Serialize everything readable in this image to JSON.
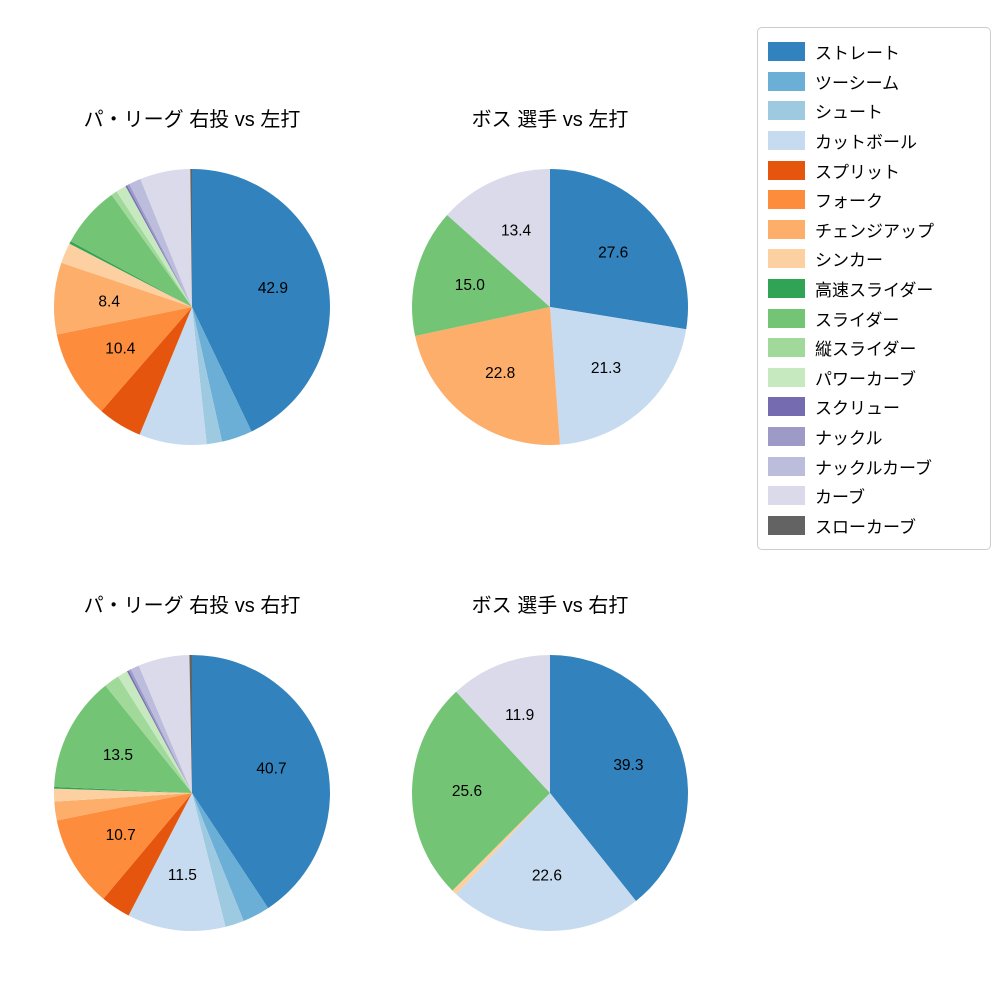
{
  "figure": {
    "background": "#ffffff"
  },
  "legend": {
    "position": "upper-right",
    "items": [
      {
        "label": "ストレート",
        "color": "#3182bd"
      },
      {
        "label": "ツーシーム",
        "color": "#6baed6"
      },
      {
        "label": "シュート",
        "color": "#9ecae1"
      },
      {
        "label": "カットボール",
        "color": "#c6dbef"
      },
      {
        "label": "スプリット",
        "color": "#e6550d"
      },
      {
        "label": "フォーク",
        "color": "#fd8d3c"
      },
      {
        "label": "チェンジアップ",
        "color": "#fdae6b"
      },
      {
        "label": "シンカー",
        "color": "#fdd0a2"
      },
      {
        "label": "高速スライダー",
        "color": "#31a354"
      },
      {
        "label": "スライダー",
        "color": "#74c476"
      },
      {
        "label": "縦スライダー",
        "color": "#a1d99b"
      },
      {
        "label": "パワーカーブ",
        "color": "#c7e9c0"
      },
      {
        "label": "スクリュー",
        "color": "#756bb1"
      },
      {
        "label": "ナックル",
        "color": "#9e9ac8"
      },
      {
        "label": "ナックルカーブ",
        "color": "#bcbddc"
      },
      {
        "label": "カーブ",
        "color": "#dadaeb"
      },
      {
        "label": "スローカーブ",
        "color": "#636363"
      }
    ]
  },
  "chart_data": [
    {
      "type": "pie",
      "title": "パ・リーグ 右投 vs 左打",
      "start_angle": "top",
      "direction": "clockwise",
      "slices": [
        {
          "name": "ストレート",
          "value": 42.9,
          "label": "42.9"
        },
        {
          "name": "ツーシーム",
          "value": 3.6,
          "label": null
        },
        {
          "name": "シュート",
          "value": 1.8,
          "label": null
        },
        {
          "name": "カットボール",
          "value": 7.9,
          "label": null
        },
        {
          "name": "スプリット",
          "value": 5.2,
          "label": null
        },
        {
          "name": "フォーク",
          "value": 10.4,
          "label": "10.4"
        },
        {
          "name": "チェンジアップ",
          "value": 8.4,
          "label": "8.4"
        },
        {
          "name": "シンカー",
          "value": 2.4,
          "label": null
        },
        {
          "name": "高速スライダー",
          "value": 0.3,
          "label": null
        },
        {
          "name": "スライダー",
          "value": 7.2,
          "label": null
        },
        {
          "name": "縦スライダー",
          "value": 0.7,
          "label": null
        },
        {
          "name": "パワーカーブ",
          "value": 1.2,
          "label": null
        },
        {
          "name": "スクリュー",
          "value": 0.2,
          "label": null
        },
        {
          "name": "ナックル",
          "value": 0.3,
          "label": null
        },
        {
          "name": "ナックルカーブ",
          "value": 1.4,
          "label": null
        },
        {
          "name": "カーブ",
          "value": 5.9,
          "label": null
        },
        {
          "name": "スローカーブ",
          "value": 0.2,
          "label": null
        }
      ]
    },
    {
      "type": "pie",
      "title": "ボス 選手 vs 左打",
      "start_angle": "top",
      "direction": "clockwise",
      "slices": [
        {
          "name": "ストレート",
          "value": 27.6,
          "label": "27.6"
        },
        {
          "name": "カットボール",
          "value": 21.3,
          "label": "21.3"
        },
        {
          "name": "チェンジアップ",
          "value": 22.8,
          "label": "22.8"
        },
        {
          "name": "スライダー",
          "value": 15.0,
          "label": "15.0"
        },
        {
          "name": "カーブ",
          "value": 13.4,
          "label": "13.4"
        }
      ]
    },
    {
      "type": "pie",
      "title": "パ・リーグ 右投 vs 右打",
      "start_angle": "top",
      "direction": "clockwise",
      "slices": [
        {
          "name": "ストレート",
          "value": 40.7,
          "label": "40.7"
        },
        {
          "name": "ツーシーム",
          "value": 3.2,
          "label": null
        },
        {
          "name": "シュート",
          "value": 2.2,
          "label": null
        },
        {
          "name": "カットボール",
          "value": 11.5,
          "label": "11.5"
        },
        {
          "name": "スプリット",
          "value": 3.5,
          "label": null
        },
        {
          "name": "フォーク",
          "value": 10.7,
          "label": "10.7"
        },
        {
          "name": "チェンジアップ",
          "value": 2.2,
          "label": null
        },
        {
          "name": "シンカー",
          "value": 1.5,
          "label": null
        },
        {
          "name": "高速スライダー",
          "value": 0.2,
          "label": null
        },
        {
          "name": "スライダー",
          "value": 13.5,
          "label": "13.5"
        },
        {
          "name": "縦スライダー",
          "value": 1.8,
          "label": null
        },
        {
          "name": "パワーカーブ",
          "value": 1.2,
          "label": null
        },
        {
          "name": "スクリュー",
          "value": 0.2,
          "label": null
        },
        {
          "name": "ナックル",
          "value": 0.3,
          "label": null
        },
        {
          "name": "ナックルカーブ",
          "value": 1.0,
          "label": null
        },
        {
          "name": "カーブ",
          "value": 6.0,
          "label": null
        },
        {
          "name": "スローカーブ",
          "value": 0.3,
          "label": null
        }
      ]
    },
    {
      "type": "pie",
      "title": "ボス 選手 vs 右打",
      "start_angle": "top",
      "direction": "clockwise",
      "slices": [
        {
          "name": "ストレート",
          "value": 39.3,
          "label": "39.3"
        },
        {
          "name": "カットボール",
          "value": 22.6,
          "label": "22.6"
        },
        {
          "name": "シンカー",
          "value": 0.6,
          "label": null
        },
        {
          "name": "スライダー",
          "value": 25.6,
          "label": "25.6"
        },
        {
          "name": "カーブ",
          "value": 11.9,
          "label": "11.9"
        }
      ]
    }
  ]
}
